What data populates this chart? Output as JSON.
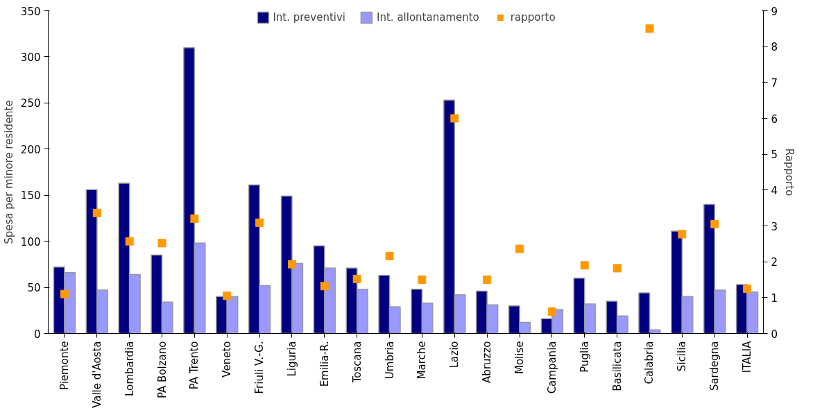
{
  "chart_data": {
    "type": "bar",
    "categories": [
      "Piemonte",
      "Valle d'Aosta",
      "Lombardia",
      "PA Bolzano",
      "PA Trento",
      "Veneto",
      "Friuli V.-G.",
      "Liguria",
      "Emilia-R.",
      "Toscana",
      "Umbria",
      "Marche",
      "Lazio",
      "Abruzzo",
      "Molise",
      "Campania",
      "Puglia",
      "Basilicata",
      "Calabria",
      "Sicilia",
      "Sardegna",
      "ITALIA"
    ],
    "series": [
      {
        "name": "Int. preventivi",
        "color": "#000080",
        "values": [
          72,
          156,
          163,
          85,
          310,
          40,
          161,
          149,
          95,
          71,
          63,
          48,
          253,
          46,
          30,
          16,
          60,
          35,
          44,
          111,
          140,
          53
        ]
      },
      {
        "name": "Int. allontanamento",
        "color": "#9999ff",
        "values": [
          66,
          47,
          64,
          34,
          98,
          40,
          52,
          76,
          71,
          48,
          29,
          33,
          42,
          31,
          12,
          26,
          32,
          19,
          4,
          40,
          47,
          45
        ]
      },
      {
        "name": "rapporto",
        "color": "#ff9900",
        "type": "scatter",
        "axis": "y2",
        "marker": "square",
        "values": [
          1.1,
          3.36,
          2.57,
          2.52,
          3.2,
          1.05,
          3.09,
          1.93,
          1.32,
          1.52,
          2.16,
          1.5,
          6.0,
          1.5,
          2.36,
          0.61,
          1.9,
          1.82,
          8.5,
          2.77,
          3.05,
          1.25
        ]
      }
    ],
    "ylabel": "Spesa per minore residente",
    "y2label": "Rapporto",
    "ylim": [
      0,
      350
    ],
    "yticks": [
      0,
      50,
      100,
      150,
      200,
      250,
      300,
      350
    ],
    "y2lim": [
      0,
      9
    ],
    "y2ticks": [
      0,
      1,
      2,
      3,
      4,
      5,
      6,
      7,
      8,
      9
    ],
    "grid": false,
    "legend": "top"
  }
}
